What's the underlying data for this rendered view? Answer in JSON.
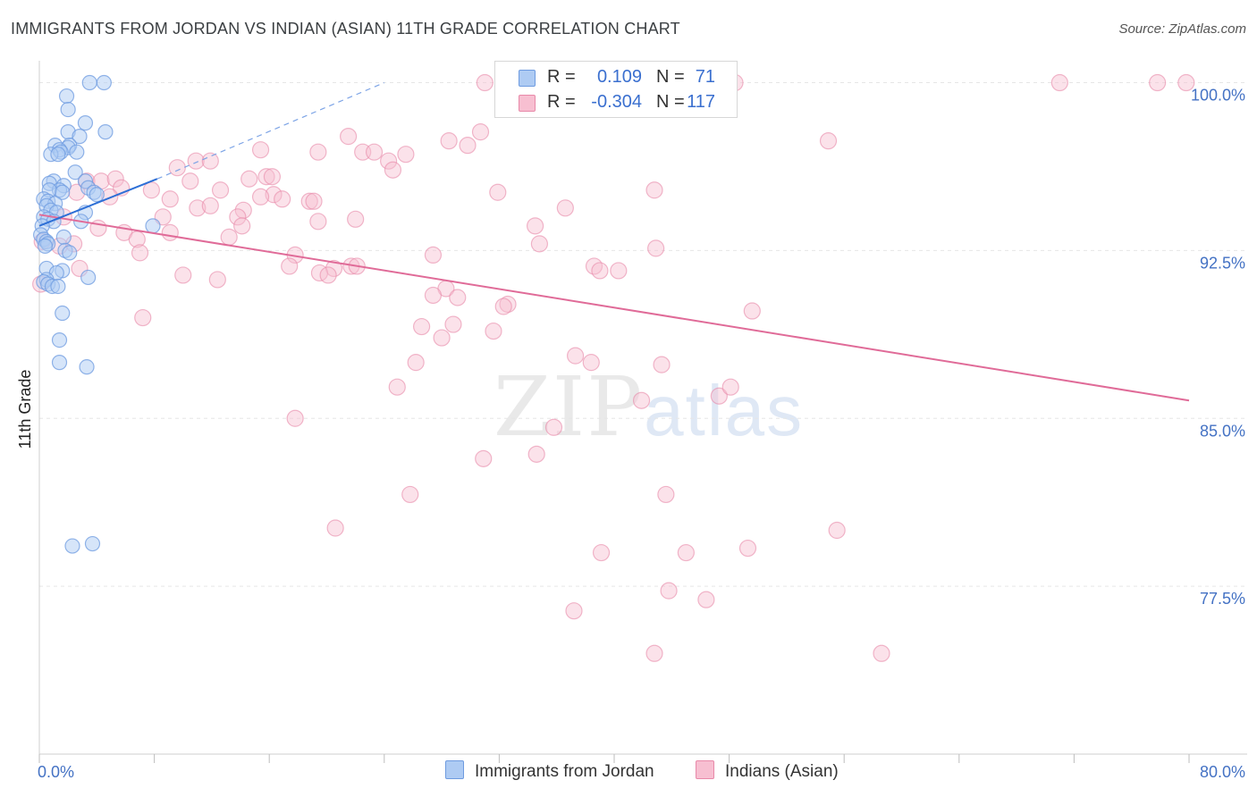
{
  "header": {
    "title": "IMMIGRANTS FROM JORDAN VS INDIAN (ASIAN) 11TH GRADE CORRELATION CHART",
    "source": "Source: ZipAtlas.com"
  },
  "watermark": {
    "zip": "ZIP",
    "atlas": "atlas"
  },
  "legend": {
    "rows": [
      {
        "r_label": "R =",
        "r_value": "0.109",
        "n_label": "N =",
        "n_value": "71",
        "color": "#aecbf3",
        "border": "#6e9be0"
      },
      {
        "r_label": "R =",
        "r_value": "-0.304",
        "n_label": "N =",
        "n_value": "117",
        "color": "#f7bfd1",
        "border": "#e889a9"
      }
    ]
  },
  "bottom_legend": {
    "items": [
      {
        "label": "Immigrants from Jordan",
        "color": "#aecbf3",
        "border": "#6e9be0"
      },
      {
        "label": "Indians (Asian)",
        "color": "#f7bfd1",
        "border": "#e889a9"
      }
    ]
  },
  "chart_data": {
    "type": "scatter",
    "title": "IMMIGRANTS FROM JORDAN VS INDIAN (ASIAN) 11TH GRADE CORRELATION CHART",
    "xlabel": "",
    "ylabel": "11th Grade",
    "xlim": [
      0,
      80
    ],
    "ylim": [
      70.0,
      100.5
    ],
    "x_tick_labels": [
      "0.0%",
      "80.0%"
    ],
    "y_ticks": [
      77.5,
      85.0,
      92.5,
      100.0
    ],
    "y_tick_labels": [
      "77.5%",
      "85.0%",
      "92.5%",
      "100.0%"
    ],
    "grid": true,
    "series": [
      {
        "name": "Immigrants from Jordan",
        "color": "#6e9be0",
        "fill": "#aecbf3",
        "trend": {
          "x": [
            0,
            8.2
          ],
          "y": [
            93.6,
            95.7
          ],
          "dashed_extension_to": [
            24,
            100.0
          ]
        },
        "points": [
          [
            3.5,
            100.0
          ],
          [
            4.5,
            100.0
          ],
          [
            1.9,
            99.4
          ],
          [
            2.0,
            98.8
          ],
          [
            2.0,
            97.8
          ],
          [
            4.6,
            97.8
          ],
          [
            2.8,
            97.6
          ],
          [
            1.1,
            97.2
          ],
          [
            2.1,
            97.2
          ],
          [
            2.0,
            97.1
          ],
          [
            1.4,
            97.0
          ],
          [
            1.5,
            96.9
          ],
          [
            2.6,
            96.9
          ],
          [
            0.8,
            96.8
          ],
          [
            1.3,
            96.8
          ],
          [
            3.2,
            98.2
          ],
          [
            2.5,
            96.0
          ],
          [
            3.2,
            95.6
          ],
          [
            1.0,
            95.6
          ],
          [
            0.7,
            95.5
          ],
          [
            1.7,
            95.4
          ],
          [
            3.4,
            95.3
          ],
          [
            1.4,
            95.2
          ],
          [
            0.7,
            95.2
          ],
          [
            1.6,
            95.1
          ],
          [
            3.8,
            95.1
          ],
          [
            4.0,
            95.0
          ],
          [
            0.3,
            94.8
          ],
          [
            0.6,
            94.7
          ],
          [
            1.1,
            94.6
          ],
          [
            0.5,
            94.5
          ],
          [
            0.8,
            94.3
          ],
          [
            1.2,
            94.2
          ],
          [
            3.2,
            94.2
          ],
          [
            0.3,
            94.0
          ],
          [
            0.6,
            93.9
          ],
          [
            1.0,
            93.8
          ],
          [
            2.9,
            93.8
          ],
          [
            0.2,
            93.6
          ],
          [
            7.9,
            93.6
          ],
          [
            0.1,
            93.2
          ],
          [
            1.7,
            93.1
          ],
          [
            0.3,
            93.0
          ],
          [
            0.5,
            92.9
          ],
          [
            0.6,
            92.8
          ],
          [
            0.4,
            92.7
          ],
          [
            1.8,
            92.5
          ],
          [
            2.1,
            92.4
          ],
          [
            0.5,
            91.7
          ],
          [
            1.6,
            91.6
          ],
          [
            1.2,
            91.5
          ],
          [
            3.4,
            91.3
          ],
          [
            0.5,
            91.2
          ],
          [
            0.3,
            91.1
          ],
          [
            0.6,
            91.0
          ],
          [
            0.9,
            90.9
          ],
          [
            1.3,
            90.9
          ],
          [
            1.6,
            89.7
          ],
          [
            1.4,
            88.5
          ],
          [
            1.4,
            87.5
          ],
          [
            3.3,
            87.3
          ],
          [
            2.3,
            79.3
          ],
          [
            3.7,
            79.4
          ]
        ]
      },
      {
        "name": "Indians (Asian)",
        "color": "#e889a9",
        "fill": "#f7bfd1",
        "trend": {
          "x": [
            0,
            80
          ],
          "y": [
            94.1,
            85.8
          ]
        },
        "points": [
          [
            31.0,
            100.0
          ],
          [
            48.4,
            100.0
          ],
          [
            71.0,
            100.0
          ],
          [
            77.8,
            100.0
          ],
          [
            79.8,
            100.0
          ],
          [
            21.5,
            97.6
          ],
          [
            28.5,
            97.4
          ],
          [
            29.8,
            97.2
          ],
          [
            30.7,
            97.8
          ],
          [
            54.9,
            97.4
          ],
          [
            15.4,
            97.0
          ],
          [
            19.4,
            96.9
          ],
          [
            22.5,
            96.9
          ],
          [
            23.3,
            96.9
          ],
          [
            25.5,
            96.8
          ],
          [
            24.3,
            96.5
          ],
          [
            24.6,
            96.1
          ],
          [
            10.9,
            96.5
          ],
          [
            11.9,
            96.5
          ],
          [
            9.6,
            96.2
          ],
          [
            15.8,
            95.8
          ],
          [
            14.6,
            95.7
          ],
          [
            16.2,
            95.8
          ],
          [
            3.3,
            95.6
          ],
          [
            4.3,
            95.6
          ],
          [
            5.3,
            95.7
          ],
          [
            10.5,
            95.6
          ],
          [
            5.7,
            95.3
          ],
          [
            2.6,
            95.1
          ],
          [
            7.8,
            95.2
          ],
          [
            12.6,
            95.2
          ],
          [
            16.3,
            95.0
          ],
          [
            31.9,
            95.1
          ],
          [
            42.8,
            95.2
          ],
          [
            4.9,
            94.9
          ],
          [
            9.1,
            94.8
          ],
          [
            15.4,
            94.9
          ],
          [
            16.9,
            94.8
          ],
          [
            18.8,
            94.7
          ],
          [
            19.1,
            94.7
          ],
          [
            11.0,
            94.4
          ],
          [
            11.9,
            94.5
          ],
          [
            14.2,
            94.3
          ],
          [
            36.6,
            94.4
          ],
          [
            13.8,
            94.0
          ],
          [
            8.6,
            94.0
          ],
          [
            22.0,
            93.9
          ],
          [
            1.7,
            94.0
          ],
          [
            14.1,
            93.6
          ],
          [
            19.4,
            93.8
          ],
          [
            34.5,
            93.6
          ],
          [
            4.1,
            93.5
          ],
          [
            5.9,
            93.3
          ],
          [
            9.1,
            93.3
          ],
          [
            13.2,
            93.1
          ],
          [
            6.8,
            93.0
          ],
          [
            0.2,
            92.9
          ],
          [
            1.4,
            92.7
          ],
          [
            2.4,
            92.8
          ],
          [
            34.8,
            92.8
          ],
          [
            7.0,
            92.4
          ],
          [
            17.8,
            92.3
          ],
          [
            27.4,
            92.3
          ],
          [
            42.9,
            92.6
          ],
          [
            17.4,
            91.8
          ],
          [
            20.5,
            91.7
          ],
          [
            21.7,
            91.8
          ],
          [
            38.6,
            91.8
          ],
          [
            2.8,
            91.7
          ],
          [
            19.5,
            91.5
          ],
          [
            20.1,
            91.4
          ],
          [
            22.1,
            91.8
          ],
          [
            39.0,
            91.6
          ],
          [
            40.3,
            91.6
          ],
          [
            10.0,
            91.4
          ],
          [
            12.4,
            91.2
          ],
          [
            28.3,
            90.8
          ],
          [
            29.1,
            90.4
          ],
          [
            27.4,
            90.5
          ],
          [
            32.6,
            90.1
          ],
          [
            32.3,
            90.0
          ],
          [
            49.6,
            89.8
          ],
          [
            7.2,
            89.5
          ],
          [
            26.6,
            89.1
          ],
          [
            28.8,
            89.2
          ],
          [
            31.6,
            88.9
          ],
          [
            28.0,
            88.6
          ],
          [
            37.3,
            87.8
          ],
          [
            26.2,
            87.5
          ],
          [
            38.4,
            87.5
          ],
          [
            43.3,
            87.4
          ],
          [
            24.9,
            86.4
          ],
          [
            41.9,
            85.8
          ],
          [
            47.3,
            86.0
          ],
          [
            48.1,
            86.4
          ],
          [
            35.8,
            84.6
          ],
          [
            17.8,
            85.0
          ],
          [
            34.6,
            83.4
          ],
          [
            30.9,
            83.2
          ],
          [
            25.8,
            81.6
          ],
          [
            43.6,
            81.6
          ],
          [
            20.6,
            80.1
          ],
          [
            55.5,
            80.0
          ],
          [
            39.1,
            79.0
          ],
          [
            45.0,
            79.0
          ],
          [
            49.3,
            79.2
          ],
          [
            43.8,
            77.3
          ],
          [
            46.4,
            76.9
          ],
          [
            37.2,
            76.4
          ],
          [
            42.8,
            74.5
          ],
          [
            58.6,
            74.5
          ],
          [
            0.1,
            91.0
          ]
        ]
      }
    ]
  }
}
